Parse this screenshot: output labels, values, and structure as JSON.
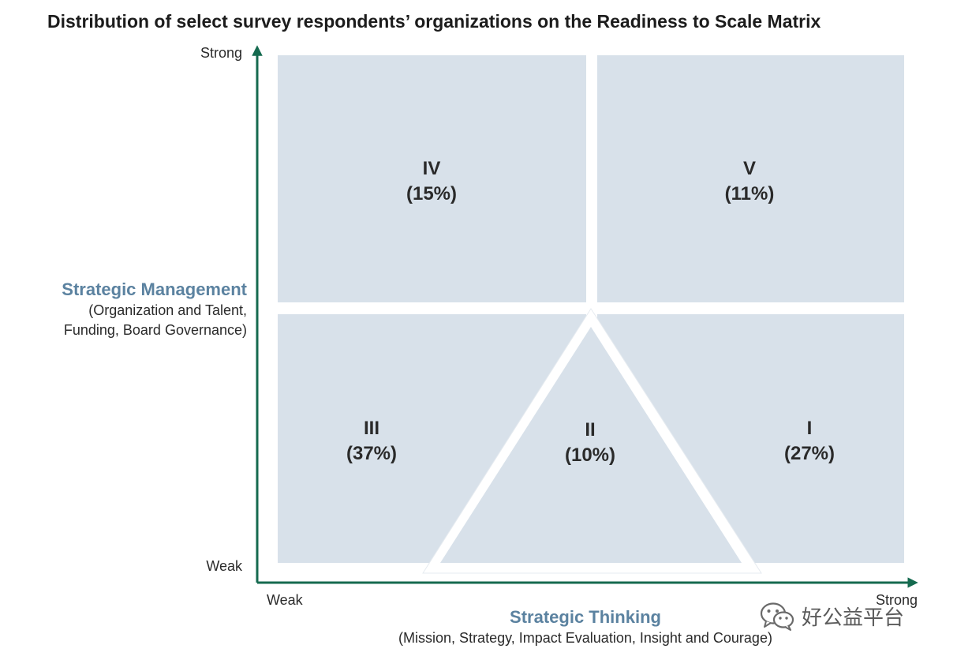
{
  "title": "Distribution of select survey respondents’ organizations on the Readiness to Scale Matrix",
  "y_axis": {
    "title": "Strategic Management",
    "subtitle_line1": "(Organization and Talent,",
    "subtitle_line2": "Funding, Board Governance)",
    "high_label": "Strong",
    "low_label": "Weak"
  },
  "x_axis": {
    "title": "Strategic Thinking",
    "subtitle": "(Mission, Strategy, Impact Evaluation, Insight and Courage)",
    "low_label": "Weak",
    "high_label": "Strong"
  },
  "segments": [
    {
      "id": "IV",
      "numeral": "IV",
      "share": "(15%)"
    },
    {
      "id": "V",
      "numeral": "V",
      "share": "(11%)"
    },
    {
      "id": "III",
      "numeral": "III",
      "share": "(37%)"
    },
    {
      "id": "II",
      "numeral": "II",
      "share": "(10%)"
    },
    {
      "id": "I",
      "numeral": "I",
      "share": "(27%)"
    }
  ],
  "colors": {
    "quadrant_fill": "#d8e1ea",
    "axis": "#156a4f",
    "axis_title": "#5b82a0",
    "separator": "#ffffff"
  },
  "watermark": {
    "icon": "wechat-icon",
    "text": "好公益平台"
  }
}
